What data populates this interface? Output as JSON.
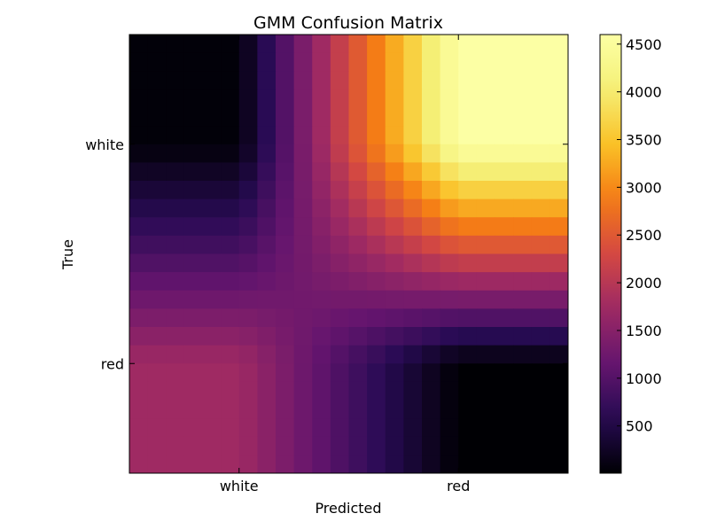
{
  "chart_data": {
    "type": "heatmap",
    "title": "GMM Confusion Matrix",
    "xlabel": "Predicted",
    "ylabel": "True",
    "x_categories": [
      "white",
      "red"
    ],
    "y_categories": [
      "white",
      "red"
    ],
    "values": [
      [
        40,
        4600
      ],
      [
        1750,
        5
      ]
    ],
    "interpolation": "smooth",
    "colormap": "inferno",
    "colorbar": {
      "min": 5,
      "max": 4600,
      "ticks": [
        500,
        1000,
        1500,
        2000,
        2500,
        3000,
        3500,
        4000,
        4500
      ]
    }
  }
}
